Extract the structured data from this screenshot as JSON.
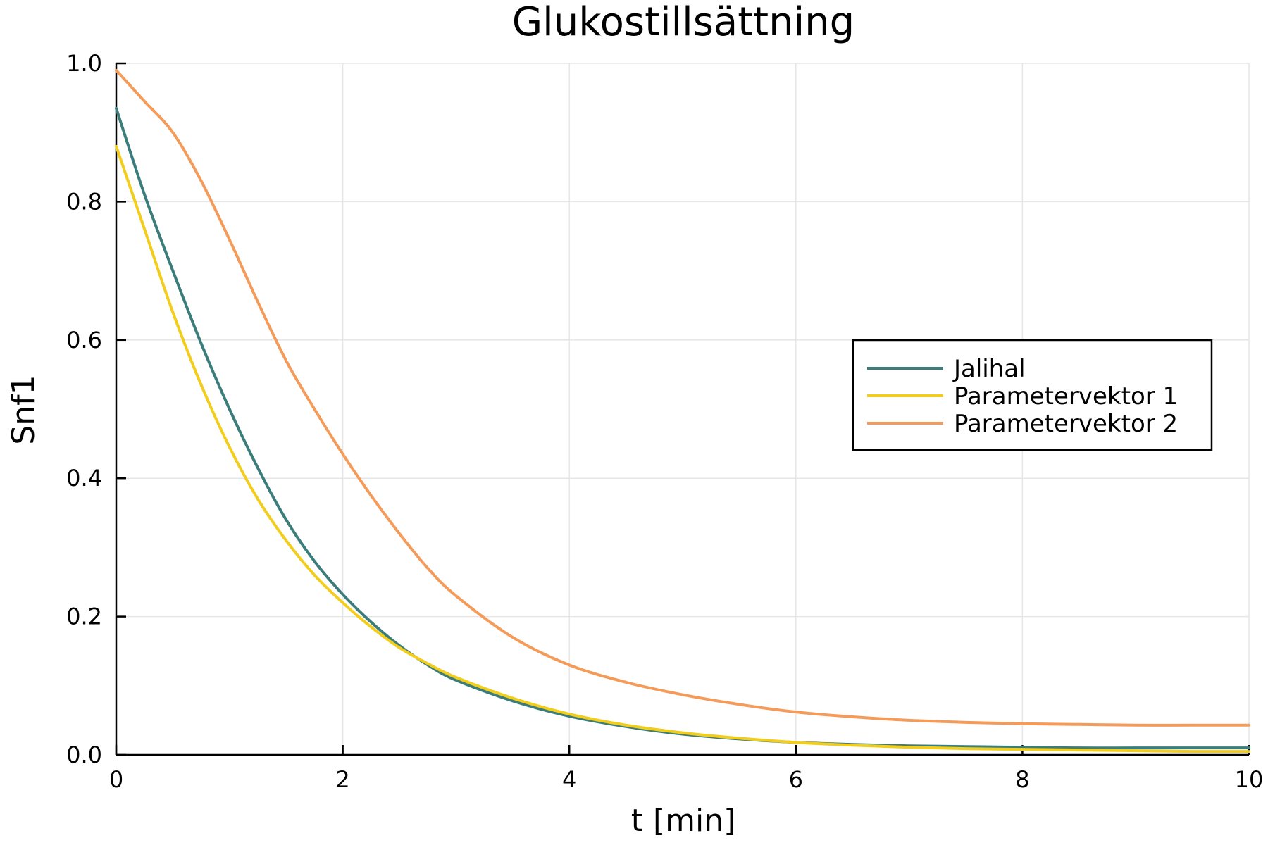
{
  "chart_data": {
    "type": "line",
    "title": "Glukostillsättning",
    "xlabel": "t [min]",
    "ylabel": "Snf1",
    "xlim": [
      0,
      10
    ],
    "ylim": [
      0,
      1
    ],
    "xticks": [
      0,
      2,
      4,
      6,
      8,
      10
    ],
    "yticks": [
      0.0,
      0.2,
      0.4,
      0.6,
      0.8,
      1.0
    ],
    "xtick_labels": [
      "0",
      "2",
      "4",
      "6",
      "8",
      "10"
    ],
    "ytick_labels": [
      "0.0",
      "0.2",
      "0.4",
      "0.6",
      "0.8",
      "1.0"
    ],
    "grid": true,
    "legend_position": "right",
    "x": [
      0,
      0.25,
      0.5,
      0.75,
      1,
      1.25,
      1.5,
      1.75,
      2,
      2.25,
      2.5,
      2.75,
      3,
      3.5,
      4,
      4.5,
      5,
      5.5,
      6,
      6.5,
      7,
      7.5,
      8,
      8.5,
      9,
      9.5,
      10
    ],
    "series": [
      {
        "name": "Jalihal",
        "color": "#3a7d7b",
        "values": [
          0.935,
          0.81,
          0.7,
          0.595,
          0.5,
          0.415,
          0.34,
          0.28,
          0.232,
          0.192,
          0.158,
          0.13,
          0.108,
          0.078,
          0.056,
          0.041,
          0.03,
          0.023,
          0.018,
          0.015,
          0.013,
          0.012,
          0.011,
          0.01,
          0.01,
          0.01,
          0.01
        ]
      },
      {
        "name": "Parametervektor 1",
        "color": "#f2cd1c",
        "values": [
          0.88,
          0.76,
          0.64,
          0.535,
          0.445,
          0.37,
          0.31,
          0.26,
          0.22,
          0.185,
          0.155,
          0.132,
          0.112,
          0.082,
          0.059,
          0.043,
          0.032,
          0.024,
          0.018,
          0.014,
          0.011,
          0.009,
          0.008,
          0.007,
          0.006,
          0.005,
          0.005
        ]
      },
      {
        "name": "Parametervektor 2",
        "color": "#f59b5a",
        "values": [
          0.99,
          0.945,
          0.9,
          0.83,
          0.745,
          0.655,
          0.57,
          0.5,
          0.435,
          0.375,
          0.32,
          0.27,
          0.23,
          0.17,
          0.13,
          0.105,
          0.087,
          0.073,
          0.062,
          0.055,
          0.05,
          0.047,
          0.045,
          0.044,
          0.043,
          0.043,
          0.043
        ]
      }
    ]
  }
}
